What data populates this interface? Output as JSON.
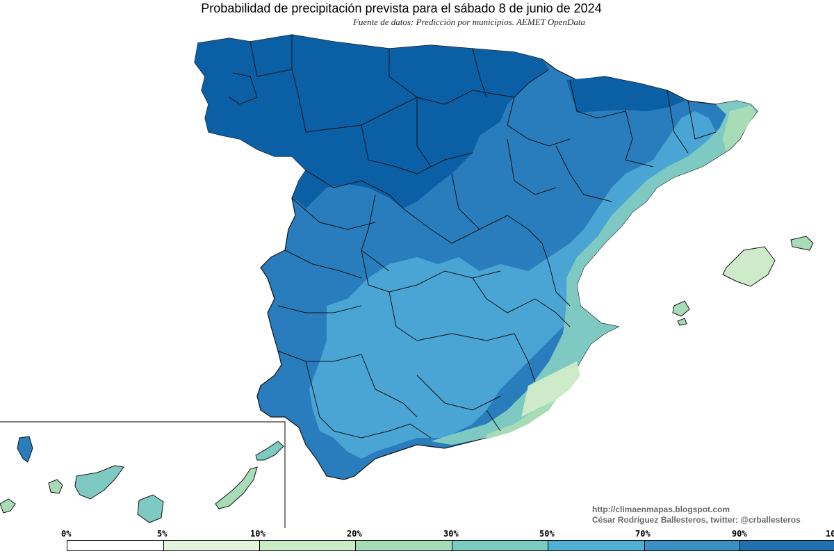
{
  "title": "Probabilidad de precipitación prevista para el sábado 8 de junio de 2024",
  "subtitle": "Fuente de datos: Predicción por municipios. AEMET OpenData",
  "credits": {
    "line1": "http://climaenmapas.blogspot.com",
    "line2": "César Rodríguez Ballesteros, twitter: @crballesteros"
  },
  "legend": {
    "labels": [
      "0%",
      "5%",
      "10%",
      "20%",
      "30%",
      "50%",
      "70%",
      "90%",
      "10"
    ],
    "colors": [
      "#ffffff",
      "#e2f4dc",
      "#c9ebc6",
      "#a6dcb5",
      "#7ccbc2",
      "#4fb0d3",
      "#3a90c4",
      "#2170b0",
      "#0b5aa0"
    ]
  },
  "map_colors": {
    "p90_100": "#0b5fa5",
    "p70_90": "#2a7dbd",
    "p50_70": "#4aa5d4",
    "p30_50": "#7fc9c3",
    "p20_30": "#a8dcb7",
    "p10_20": "#cdebc9",
    "border": "#111111"
  }
}
